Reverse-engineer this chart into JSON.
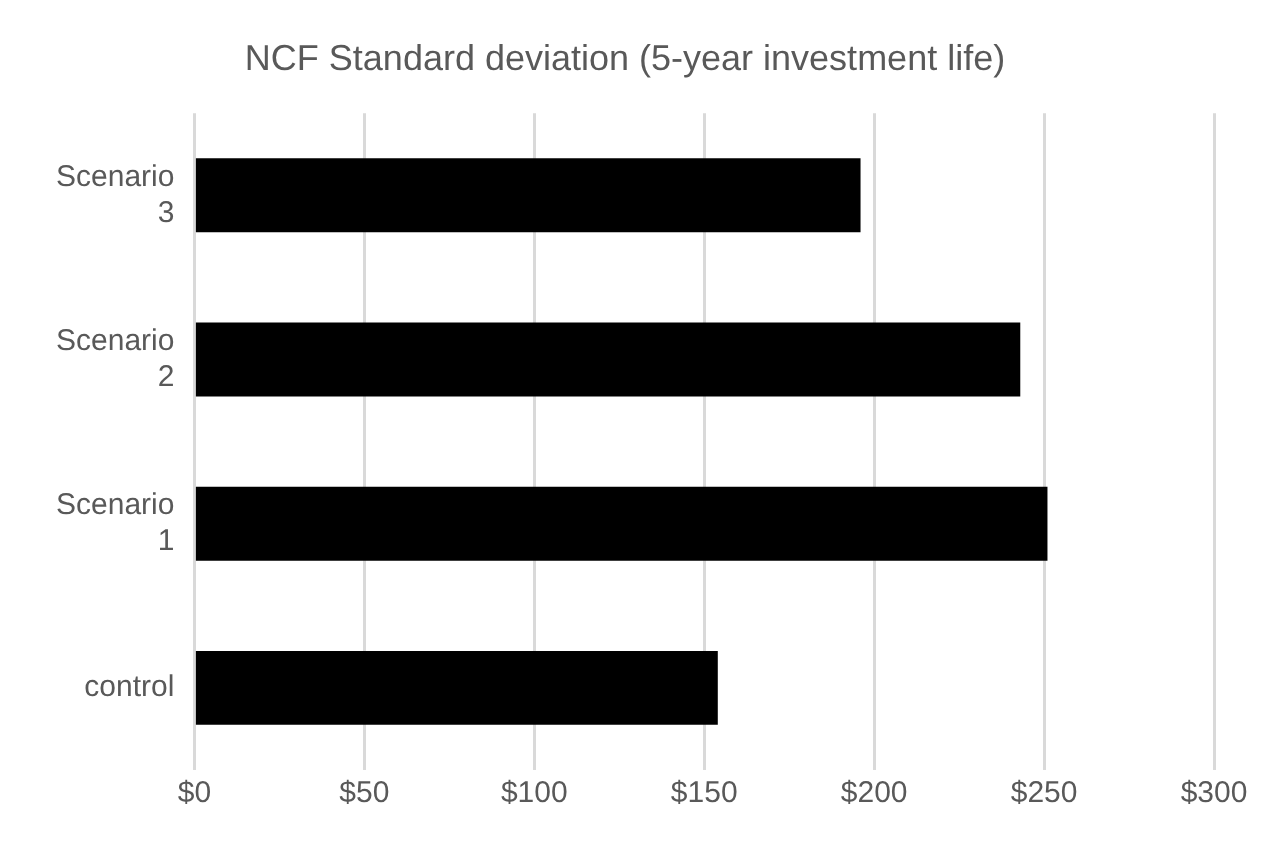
{
  "chart_data": {
    "type": "bar",
    "orientation": "horizontal",
    "title": "NCF Standard deviation (5-year investment life)",
    "categories": [
      "Scenario 3",
      "Scenario 2",
      "Scenario 1",
      "control"
    ],
    "values": [
      196,
      243,
      251,
      154
    ],
    "color": "#000000",
    "xlim": [
      0,
      300
    ],
    "xticks": [
      {
        "value": 0,
        "label": "$0"
      },
      {
        "value": 50,
        "label": "$50"
      },
      {
        "value": 100,
        "label": "$100"
      },
      {
        "value": 150,
        "label": "$150"
      },
      {
        "value": 200,
        "label": "$200"
      },
      {
        "value": 250,
        "label": "$250"
      },
      {
        "value": 300,
        "label": "$300"
      }
    ],
    "grid": "x",
    "legend": false
  }
}
